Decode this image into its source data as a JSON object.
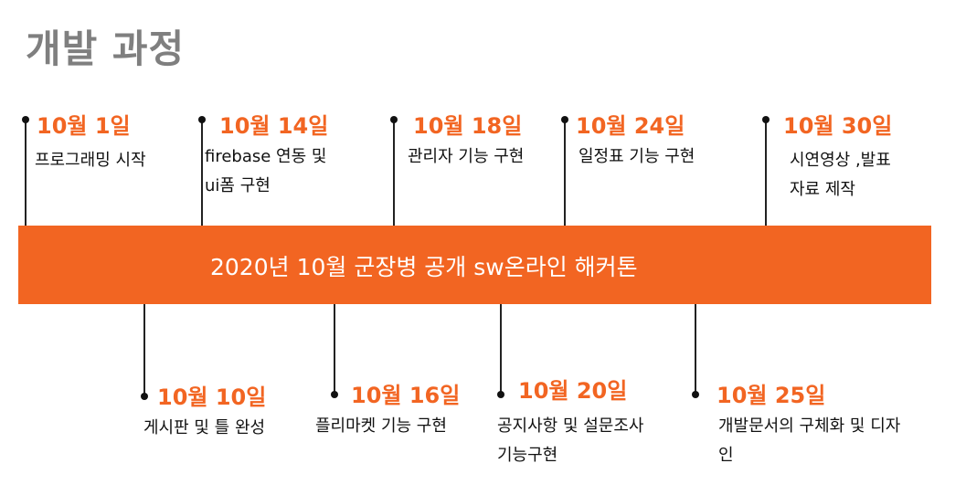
{
  "title": "개발 과정",
  "banner": "2020년 10월 군장병 공개 sw온라인 해커톤",
  "colors": {
    "accent": "#f26522",
    "title": "#7f7f7f",
    "text": "#111111"
  },
  "milestones_top": [
    {
      "date": "10월 1일",
      "lines": [
        "프로그래밍 시작"
      ]
    },
    {
      "date": "10월 14일",
      "lines": [
        "firebase 연동 및",
        "ui폼 구현"
      ]
    },
    {
      "date": "10월 18일",
      "lines": [
        "관리자 기능 구현"
      ]
    },
    {
      "date": "10월 24일",
      "lines": [
        "일정표 기능 구현"
      ]
    },
    {
      "date": "10월 30일",
      "lines": [
        "시연영상 ,발표",
        "자료 제작"
      ]
    }
  ],
  "milestones_bottom": [
    {
      "date": "10월 10일",
      "lines": [
        "게시판 및 틀 완성"
      ]
    },
    {
      "date": "10월 16일",
      "lines": [
        "플리마켓 기능 구현"
      ]
    },
    {
      "date": "10월 20일",
      "lines": [
        "공지사항 및 설문조사",
        "기능구현"
      ]
    },
    {
      "date": "10월 25일",
      "lines": [
        "개발문서의 구체화 및 디자",
        "인"
      ]
    }
  ]
}
